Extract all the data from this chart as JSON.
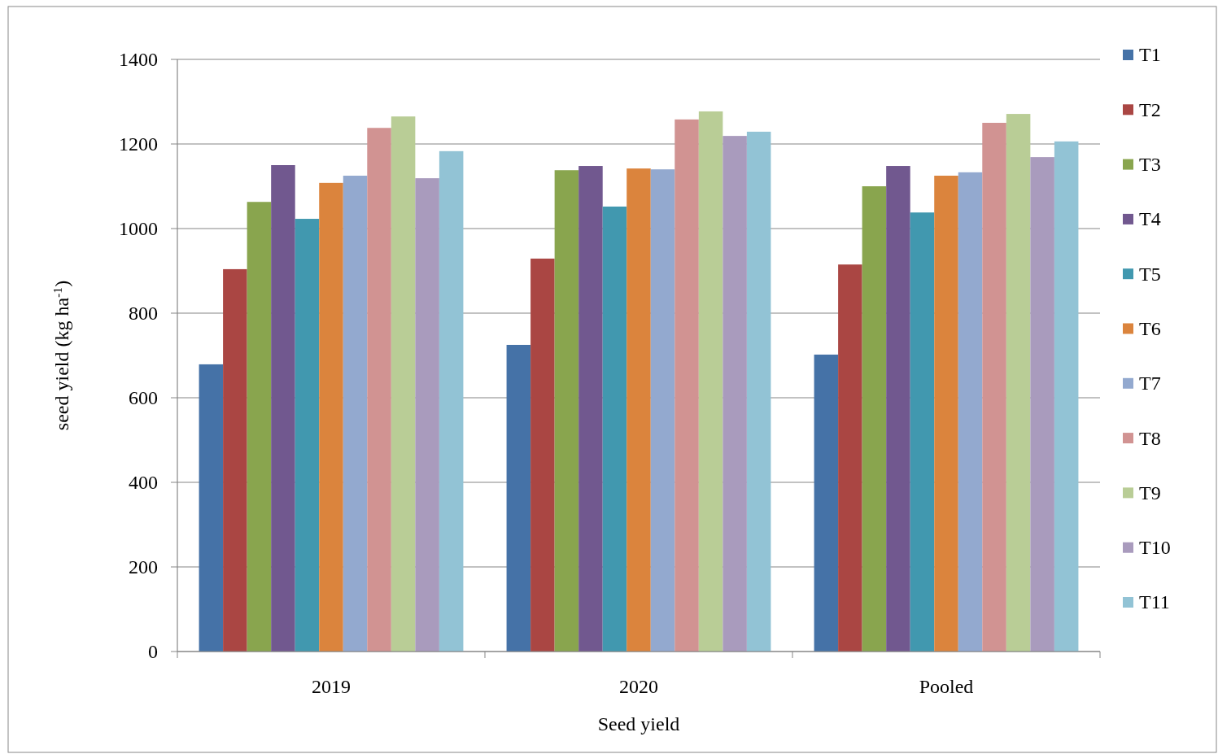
{
  "chart_data": {
    "type": "bar",
    "xlabel": "Seed yield",
    "ylabel": "seed yield (kg ha$^{-1}$)",
    "categories": [
      "2019",
      "2020",
      "Pooled"
    ],
    "ylim": [
      0,
      1400
    ],
    "yticks": [
      0,
      200,
      400,
      600,
      800,
      1000,
      1200,
      1400
    ],
    "grid": "y",
    "legend": "right",
    "series": [
      {
        "name": "T1",
        "color": "#4572a7",
        "values": [
          679,
          725,
          702
        ]
      },
      {
        "name": "T2",
        "color": "#aa4643",
        "values": [
          904,
          929,
          915
        ]
      },
      {
        "name": "T3",
        "color": "#89a54e",
        "values": [
          1063,
          1138,
          1100
        ]
      },
      {
        "name": "T4",
        "color": "#71588f",
        "values": [
          1150,
          1148,
          1148
        ]
      },
      {
        "name": "T5",
        "color": "#4198af",
        "values": [
          1023,
          1052,
          1038
        ]
      },
      {
        "name": "T6",
        "color": "#db843d",
        "values": [
          1108,
          1142,
          1125
        ]
      },
      {
        "name": "T7",
        "color": "#93a9cf",
        "values": [
          1125,
          1140,
          1133
        ]
      },
      {
        "name": "T8",
        "color": "#d19392",
        "values": [
          1238,
          1258,
          1250
        ]
      },
      {
        "name": "T9",
        "color": "#b9cd96",
        "values": [
          1265,
          1277,
          1271
        ]
      },
      {
        "name": "T10",
        "color": "#a99bbd",
        "values": [
          1119,
          1219,
          1169
        ]
      },
      {
        "name": "T11",
        "color": "#92c3d5",
        "values": [
          1183,
          1229,
          1206
        ]
      }
    ]
  }
}
